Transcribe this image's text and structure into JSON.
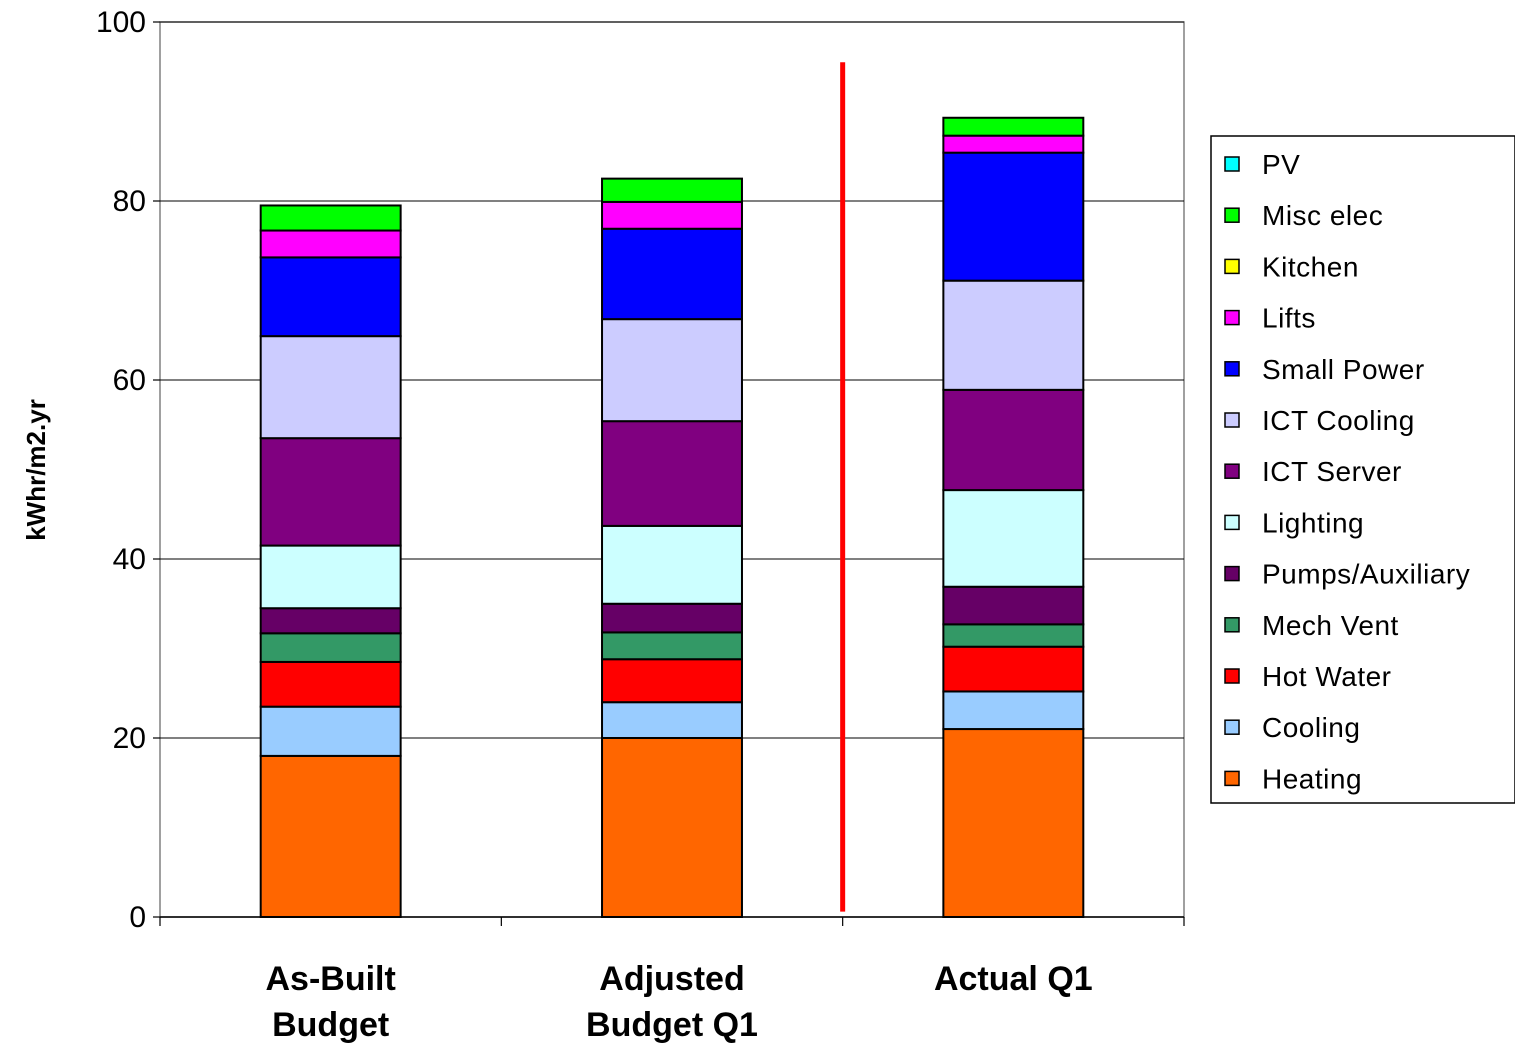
{
  "chart_data": {
    "type": "bar",
    "stacked": true,
    "title": "",
    "xlabel": "",
    "ylabel": "kWhr/m2.yr",
    "ylim": [
      0,
      100
    ],
    "yticks": [
      0,
      20,
      40,
      60,
      80,
      100
    ],
    "grid": true,
    "legend_position": "right",
    "categories": [
      [
        "As-Built",
        "Budget"
      ],
      [
        "Adjusted",
        "Budget Q1"
      ],
      [
        "Actual Q1"
      ]
    ],
    "separator_line": {
      "after_category_index": 1,
      "color": "#ff0000"
    },
    "series": [
      {
        "name": "Heating",
        "color": "#ff6600",
        "values": [
          18.0,
          20.0,
          21.0
        ]
      },
      {
        "name": "Cooling",
        "color": "#99ccff",
        "values": [
          5.5,
          4.0,
          4.2
        ]
      },
      {
        "name": "Hot Water",
        "color": "#ff0000",
        "values": [
          5.0,
          4.8,
          5.0
        ]
      },
      {
        "name": "Mech Vent",
        "color": "#339966",
        "values": [
          3.2,
          3.0,
          2.5
        ]
      },
      {
        "name": "Pumps/Auxiliary",
        "color": "#660066",
        "values": [
          2.8,
          3.2,
          4.2
        ]
      },
      {
        "name": "Lighting",
        "color": "#ccffff",
        "values": [
          7.0,
          8.7,
          10.8
        ]
      },
      {
        "name": "ICT Server",
        "color": "#800080",
        "values": [
          12.0,
          11.7,
          11.2
        ]
      },
      {
        "name": "ICT Cooling",
        "color": "#ccccff",
        "values": [
          11.4,
          11.4,
          12.2
        ]
      },
      {
        "name": "Small Power",
        "color": "#0000ff",
        "values": [
          8.8,
          10.1,
          14.3
        ]
      },
      {
        "name": "Lifts",
        "color": "#ff00ff",
        "values": [
          3.0,
          3.0,
          1.9
        ]
      },
      {
        "name": "Kitchen",
        "color": "#ffff00",
        "values": [
          0,
          0,
          0
        ]
      },
      {
        "name": "Misc elec",
        "color": "#00ff00",
        "values": [
          2.8,
          2.6,
          2.0
        ]
      },
      {
        "name": "PV",
        "color": "#00ffff",
        "values": [
          0,
          0,
          0
        ]
      }
    ]
  }
}
